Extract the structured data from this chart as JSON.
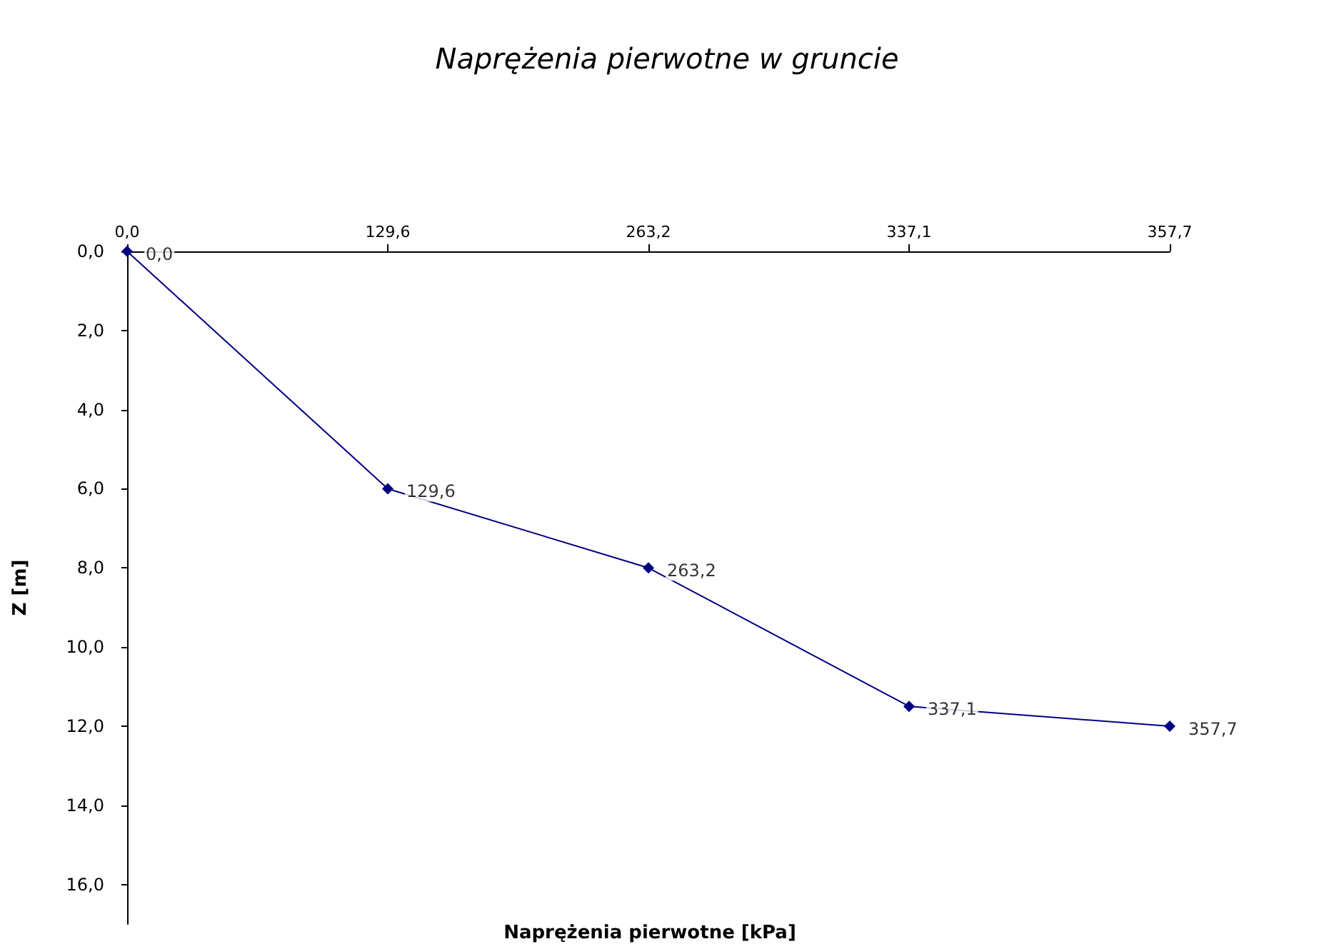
{
  "chart_data": {
    "type": "line",
    "title": "Naprężenia pierwotne w gruncie",
    "xlabel": "Naprężenia pierwotne [kPa]",
    "ylabel": "Z [m]",
    "categories": [
      "0,0",
      "129,6",
      "263,2",
      "337,1",
      "357,7"
    ],
    "series": [
      {
        "color": "#000080",
        "values": [
          0,
          6,
          8,
          11.5,
          12
        ]
      }
    ],
    "annotations": [
      {
        "text": "0,0",
        "x": "0,0",
        "y": 0
      },
      {
        "text": "129,6",
        "x": "129,6",
        "y": 6
      },
      {
        "text": "263,2",
        "x": "263,2",
        "y": 8
      },
      {
        "text": "337,1",
        "x": "337,1",
        "y": 11.5
      },
      {
        "text": "357,7",
        "x": "357,7",
        "y": 12
      }
    ],
    "ylim": [
      17,
      0
    ],
    "yticks": [
      {
        "value": 0,
        "label": "0,0"
      },
      {
        "value": 2,
        "label": "2,0"
      },
      {
        "value": 4,
        "label": "4,0"
      },
      {
        "value": 6,
        "label": "6,0"
      },
      {
        "value": 8,
        "label": "8,0"
      },
      {
        "value": 10,
        "label": "10,0"
      },
      {
        "value": 12,
        "label": "12,0"
      },
      {
        "value": 14,
        "label": "14,0"
      },
      {
        "value": 16,
        "label": "16,0"
      }
    ],
    "marker": "diamond",
    "line_style": "solid",
    "grid": false
  }
}
